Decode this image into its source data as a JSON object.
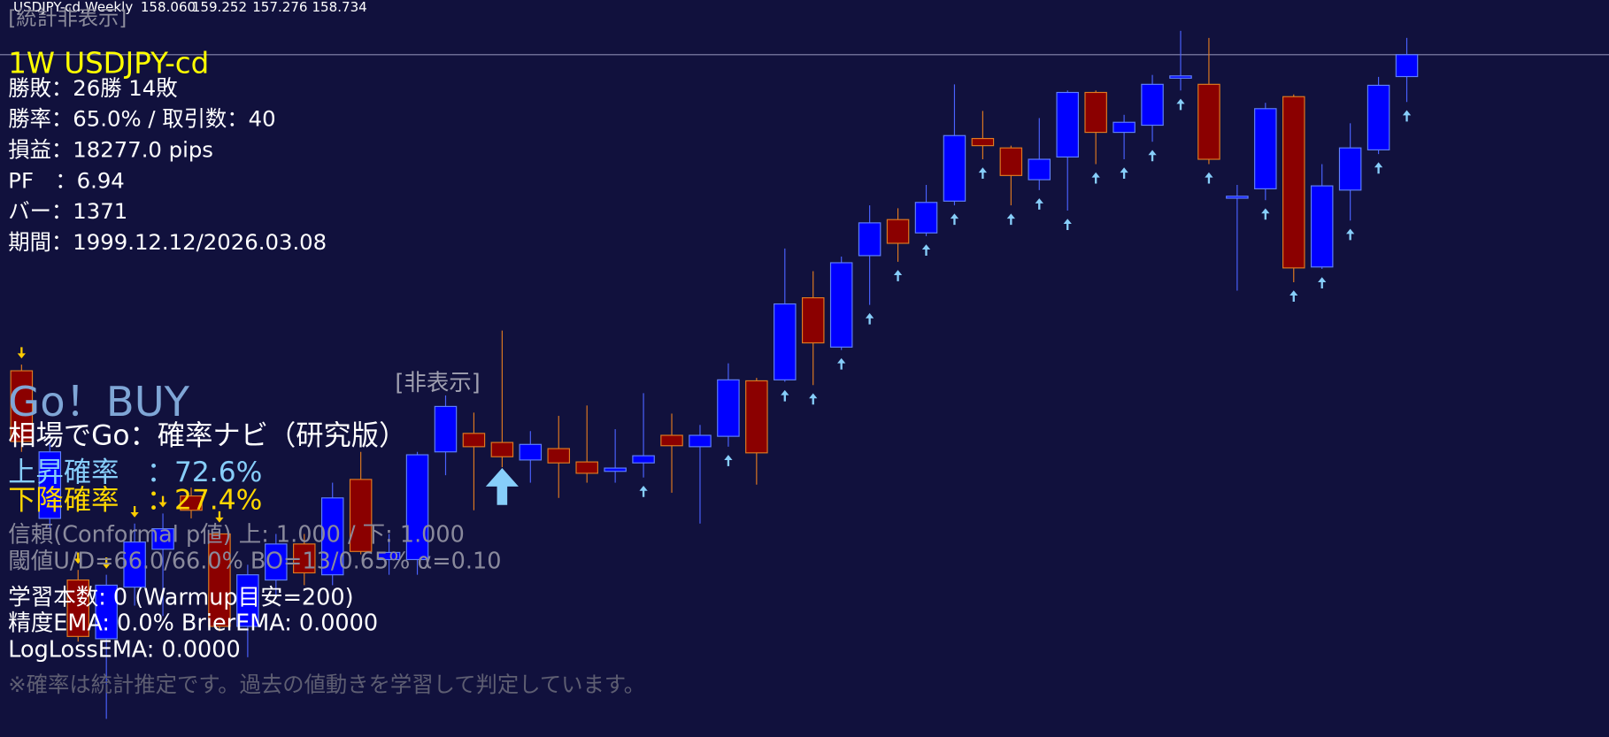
{
  "header": {
    "symbol": "USDJPY-cd,Weekly",
    "ohlc": [
      "158.060",
      "159.252",
      "157.276",
      "158.734"
    ]
  },
  "stats": {
    "toggle": "[統計非表示]",
    "title": "1W USDJPY-cd",
    "lines": [
      "勝敗：26勝 14敗",
      "勝率：65.0%  /  取引数：40",
      "損益：18277.0 pips",
      "PF　：6.94",
      "バー：1371",
      "期間：1999.12.12/2026.03.08"
    ]
  },
  "panel": {
    "toggle": "[非表示]",
    "signal": "Go！BUY",
    "name": "相場でGo：確率ナビ（研究版）",
    "up": "上昇確率　：72.6%",
    "down": "下降確率　：27.4%",
    "confidence": "信頼(Conformal p値)  上: 1.000 / 下: 1.000",
    "threshold": "閾値U/D=66.0/66.0%   BO=13/0.65%   α=0.10",
    "learning": "学習本数: 0   (Warmup目安=200)",
    "accuracy": "精度EMA: 0.0%   BrierEMA: 0.0000",
    "logloss": "LogLossEMA: 0.0000",
    "note": "※確率は統計推定です。過去の値動きを学習して判定しています。"
  },
  "chart_data": {
    "type": "candlestick",
    "ylim": [
      137.7,
      160.42
    ],
    "up_color": "#0000ff",
    "down_color": "#8b0000",
    "open": [
      148.99,
      144.44,
      142.54,
      140.73,
      142.32,
      143.49,
      145.13,
      143.96,
      141.11,
      142.54,
      143.65,
      142.7,
      145.64,
      143.17,
      143.17,
      146.49,
      147.06,
      146.78,
      146.24,
      146.59,
      146.18,
      145.89,
      146.15,
      147.0,
      146.65,
      146.97,
      148.68,
      148.71,
      151.24,
      149.72,
      152.54,
      153.65,
      153.24,
      154.22,
      156.15,
      155.86,
      154.88,
      155.58,
      157.57,
      156.34,
      156.56,
      158.01,
      157.82,
      154.31,
      154.6,
      157.44,
      152.19,
      154.56,
      155.8,
      158.06
    ],
    "high": [
      149.18,
      146.81,
      142.85,
      142.7,
      144.28,
      144.59,
      145.39,
      144.12,
      143.01,
      143.96,
      143.96,
      145.54,
      146.49,
      143.96,
      146.49,
      148.23,
      147.7,
      150.23,
      147.13,
      147.6,
      147.92,
      147.19,
      148.3,
      147.67,
      147.32,
      149.22,
      148.77,
      152.76,
      152.06,
      152.51,
      154.09,
      154.0,
      154.72,
      157.82,
      157.0,
      155.93,
      156.78,
      157.63,
      157.63,
      156.88,
      158.11,
      159.47,
      159.25,
      154.72,
      157.25,
      157.51,
      155.36,
      156.62,
      158.05,
      159.252
    ],
    "low": [
      146.49,
      144.12,
      140.64,
      138.26,
      141.75,
      141.43,
      144.44,
      140.96,
      140.16,
      142.06,
      142.38,
      142.38,
      143.33,
      142.7,
      142.7,
      145.77,
      144.69,
      146.02,
      145.54,
      145.07,
      145.54,
      145.54,
      145.7,
      145.23,
      144.28,
      146.65,
      145.48,
      148.65,
      148.55,
      149.63,
      151.02,
      152.35,
      153.14,
      154.09,
      155.51,
      154.09,
      154.56,
      153.93,
      155.36,
      155.51,
      156.05,
      157.63,
      155.36,
      151.46,
      154.25,
      151.72,
      152.13,
      153.62,
      155.67,
      157.276
    ],
    "close": [
      146.81,
      146.49,
      140.8,
      142.38,
      143.71,
      144.12,
      144.69,
      141.11,
      142.7,
      143.65,
      142.76,
      145.07,
      143.42,
      143.39,
      146.4,
      147.89,
      146.65,
      146.34,
      146.72,
      146.15,
      145.83,
      145.99,
      146.37,
      146.68,
      147.0,
      148.71,
      146.46,
      151.05,
      149.85,
      152.32,
      153.55,
      152.92,
      154.18,
      156.24,
      155.93,
      155.01,
      155.51,
      157.57,
      156.34,
      156.65,
      157.82,
      158.08,
      155.51,
      154.37,
      157.07,
      152.16,
      154.69,
      155.86,
      157.79,
      158.734
    ]
  }
}
